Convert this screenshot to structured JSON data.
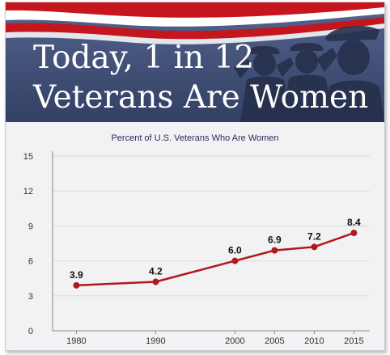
{
  "banner": {
    "title_line1": "Today, 1 in 12",
    "title_line2": "Veterans Are Women"
  },
  "colors": {
    "banner_bg": "#3d4d75",
    "flag_red": "#c4161c",
    "line": "#b0191e",
    "grid": "#dcdce0"
  },
  "chart_data": {
    "type": "line",
    "title": "Percent of U.S. Veterans Who Are Women",
    "xlabel": "",
    "ylabel": "",
    "x": [
      1980,
      1990,
      2000,
      2005,
      2010,
      2015
    ],
    "y": [
      3.9,
      4.2,
      6.0,
      6.9,
      7.2,
      8.4
    ],
    "data_labels": [
      "3.9",
      "4.2",
      "6.0",
      "6.9",
      "7.2",
      "8.4"
    ],
    "xticks": [
      "1980",
      "1990",
      "2000",
      "2005",
      "2010",
      "2015"
    ],
    "yticks": [
      "0",
      "3",
      "6",
      "9",
      "12",
      "15"
    ],
    "ylim": [
      0,
      15
    ],
    "xlim": [
      1977,
      2017
    ],
    "grid": true
  }
}
